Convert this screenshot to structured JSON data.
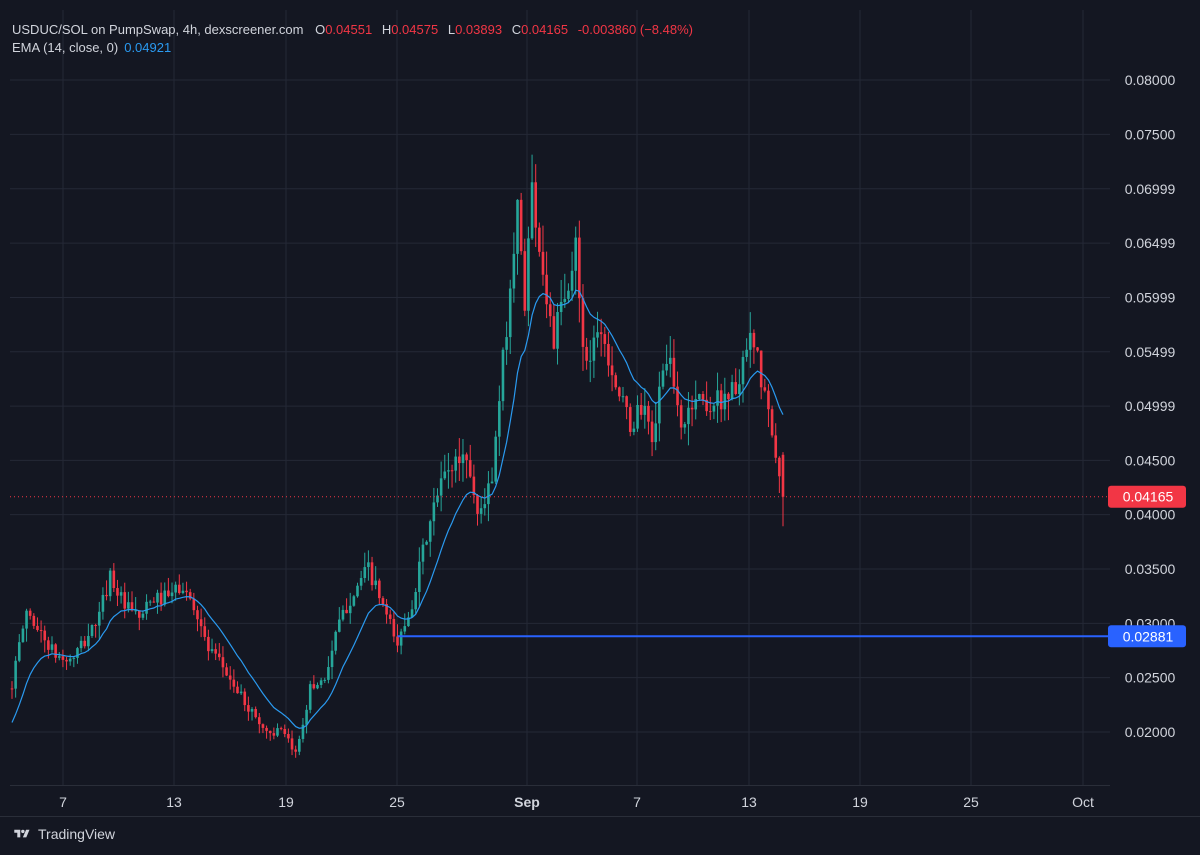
{
  "legend": {
    "title": "USDUC/SOL on PumpSwap, 4h, dexscreener.com",
    "o_key": "O",
    "o_val": "0.04551",
    "h_key": "H",
    "h_val": "0.04575",
    "l_key": "L",
    "l_val": "0.03893",
    "c_key": "C",
    "c_val": "0.04165",
    "change": "-0.003860 (−8.48%)",
    "ema_label": "EMA (14, close, 0)",
    "ema_val": "0.04921"
  },
  "footer": {
    "brand": "TradingView",
    "logo_icon": "tradingview-logo-icon"
  },
  "colors": {
    "background": "#141722",
    "grid": "#242836",
    "up": "#26a69a",
    "down": "#f23645",
    "ema": "#2a9af0",
    "hline": "#2962ff",
    "text": "#d1d4dc"
  },
  "chart_data": {
    "type": "candlestick",
    "symbol": "USDUC/SOL",
    "timeframe": "4h",
    "y_ticks": [
      "0.08000",
      "0.07500",
      "0.06999",
      "0.06499",
      "0.05999",
      "0.05499",
      "0.04999",
      "0.04500",
      "0.04000",
      "0.03500",
      "0.03000",
      "0.02500",
      "0.02000"
    ],
    "x_ticks": [
      "7",
      "13",
      "19",
      "25",
      "Sep",
      "7",
      "13",
      "19",
      "25",
      "Oct"
    ],
    "ylim": [
      0.0155,
      0.0825
    ],
    "last_price_label": "0.04165",
    "horizontal_line_label": "0.02881",
    "horizontal_line_value": 0.02881,
    "last_price": 0.04165,
    "ema_series_name": "EMA (14, close, 0)",
    "close_path": [
      [
        0,
        0.0245
      ],
      [
        4,
        0.0312
      ],
      [
        8,
        0.029
      ],
      [
        12,
        0.027
      ],
      [
        16,
        0.0265
      ],
      [
        20,
        0.0283
      ],
      [
        24,
        0.0307
      ],
      [
        27,
        0.0345
      ],
      [
        31,
        0.0315
      ],
      [
        35,
        0.0305
      ],
      [
        39,
        0.0322
      ],
      [
        43,
        0.0324
      ],
      [
        46,
        0.0333
      ],
      [
        50,
        0.0318
      ],
      [
        54,
        0.0275
      ],
      [
        58,
        0.026
      ],
      [
        62,
        0.0237
      ],
      [
        66,
        0.0218
      ],
      [
        70,
        0.02
      ],
      [
        74,
        0.02
      ],
      [
        78,
        0.018
      ],
      [
        82,
        0.024
      ],
      [
        86,
        0.025
      ],
      [
        90,
        0.03
      ],
      [
        94,
        0.033
      ],
      [
        98,
        0.035
      ],
      [
        102,
        0.0315
      ],
      [
        106,
        0.028
      ],
      [
        110,
        0.032
      ],
      [
        114,
        0.038
      ],
      [
        118,
        0.043
      ],
      [
        122,
        0.045
      ],
      [
        125,
        0.0455
      ],
      [
        128,
        0.04
      ],
      [
        132,
        0.043
      ],
      [
        135,
        0.054
      ],
      [
        137,
        0.061
      ],
      [
        139,
        0.068
      ],
      [
        141,
        0.06
      ],
      [
        143,
        0.07
      ],
      [
        145,
        0.065
      ],
      [
        147,
        0.06
      ],
      [
        149,
        0.056
      ],
      [
        151,
        0.059
      ],
      [
        153,
        0.06
      ],
      [
        155,
        0.065
      ],
      [
        157,
        0.056
      ],
      [
        159,
        0.054
      ],
      [
        161,
        0.058
      ],
      [
        163,
        0.056
      ],
      [
        167,
        0.051
      ],
      [
        170,
        0.048
      ],
      [
        173,
        0.05
      ],
      [
        176,
        0.047
      ],
      [
        180,
        0.055
      ],
      [
        184,
        0.048
      ],
      [
        188,
        0.051
      ],
      [
        192,
        0.05
      ],
      [
        196,
        0.051
      ],
      [
        200,
        0.052
      ],
      [
        203,
        0.056
      ],
      [
        205,
        0.054
      ],
      [
        207,
        0.051
      ],
      [
        209,
        0.047
      ],
      [
        211,
        0.043
      ],
      [
        212,
        0.04165
      ]
    ]
  }
}
